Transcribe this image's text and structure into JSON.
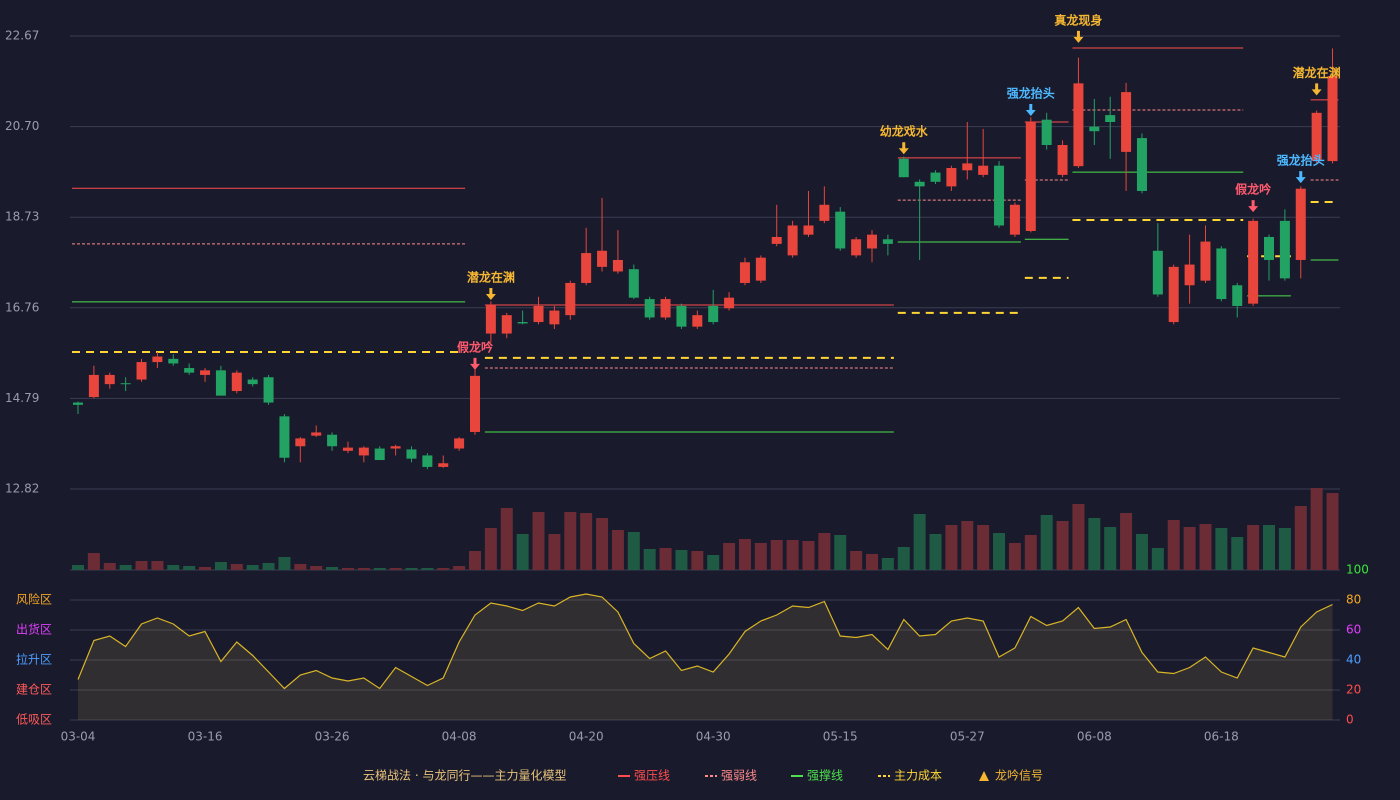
{
  "chart_data": {
    "type": "candlestick",
    "title": "云梯战法 · 与龙同行——主力量化模型",
    "categories": [
      "03-04",
      null,
      null,
      null,
      null,
      null,
      null,
      null,
      "03-16",
      null,
      null,
      null,
      null,
      null,
      null,
      null,
      "03-26",
      null,
      null,
      null,
      null,
      null,
      null,
      null,
      "04-08",
      null,
      null,
      null,
      null,
      null,
      null,
      null,
      "04-20",
      null,
      null,
      null,
      null,
      null,
      null,
      null,
      "04-30",
      null,
      null,
      null,
      null,
      null,
      null,
      null,
      "05-15",
      null,
      null,
      null,
      null,
      null,
      null,
      null,
      "05-27",
      null,
      null,
      null,
      null,
      null,
      null,
      null,
      "06-08",
      null,
      null,
      null,
      null,
      null,
      null,
      null,
      "06-18",
      null,
      null,
      null,
      null,
      null,
      null,
      null
    ],
    "ohlc": {
      "open": [
        14.7,
        14.82,
        15.1,
        15.12,
        15.2,
        15.58,
        15.65,
        15.45,
        15.3,
        15.4,
        14.95,
        15.2,
        15.25,
        14.4,
        13.75,
        13.98,
        14.0,
        13.65,
        13.55,
        13.7,
        13.7,
        13.68,
        13.55,
        13.3,
        13.7,
        14.06,
        16.2,
        16.2,
        16.45,
        16.45,
        16.4,
        16.6,
        17.3,
        17.65,
        17.55,
        17.6,
        16.95,
        16.55,
        16.8,
        16.35,
        16.8,
        16.75,
        17.3,
        17.35,
        18.15,
        17.9,
        18.35,
        18.65,
        18.85,
        17.9,
        18.05,
        18.25,
        20.0,
        19.5,
        19.7,
        19.4,
        19.75,
        19.65,
        19.85,
        18.35,
        18.43,
        20.85,
        19.65,
        19.84,
        20.7,
        20.95,
        20.15,
        20.45,
        18.0,
        16.45,
        17.25,
        17.35,
        18.05,
        17.25,
        16.85,
        18.3,
        18.65,
        17.8,
        19.95,
        19.95
      ],
      "close": [
        14.65,
        15.3,
        15.3,
        15.1,
        15.58,
        15.7,
        15.55,
        15.35,
        15.4,
        14.85,
        15.35,
        15.1,
        14.7,
        13.5,
        13.92,
        14.05,
        13.75,
        13.72,
        13.72,
        13.45,
        13.75,
        13.48,
        13.3,
        13.38,
        13.92,
        15.28,
        16.82,
        16.6,
        16.42,
        16.8,
        16.7,
        17.3,
        17.95,
        18.0,
        17.8,
        16.98,
        16.55,
        16.95,
        16.35,
        16.6,
        16.45,
        16.98,
        17.75,
        17.85,
        18.3,
        18.55,
        18.55,
        19.0,
        18.05,
        18.25,
        18.35,
        18.15,
        19.6,
        19.4,
        19.5,
        19.8,
        19.9,
        19.85,
        18.55,
        19.0,
        20.8,
        20.3,
        20.3,
        21.64,
        20.6,
        20.8,
        21.45,
        19.3,
        17.05,
        17.65,
        17.7,
        18.2,
        16.95,
        16.8,
        18.65,
        17.8,
        17.4,
        19.35,
        21.0,
        21.8
      ],
      "high": [
        14.72,
        15.5,
        15.35,
        15.25,
        15.65,
        15.8,
        15.75,
        15.55,
        15.45,
        15.5,
        15.4,
        15.25,
        15.3,
        14.45,
        13.95,
        14.2,
        14.05,
        13.85,
        13.75,
        13.75,
        13.78,
        13.75,
        13.6,
        13.55,
        13.95,
        15.45,
        16.9,
        16.65,
        16.7,
        17.0,
        16.8,
        17.35,
        18.5,
        19.15,
        18.45,
        17.7,
        17.0,
        17.0,
        16.85,
        16.7,
        17.15,
        17.1,
        17.85,
        17.9,
        19.0,
        18.65,
        19.3,
        19.4,
        18.95,
        18.3,
        18.45,
        18.35,
        20.05,
        19.55,
        19.75,
        19.85,
        20.8,
        20.65,
        19.95,
        19.05,
        20.9,
        21.0,
        20.4,
        22.2,
        21.3,
        21.35,
        21.65,
        20.55,
        18.6,
        17.7,
        18.35,
        18.55,
        18.1,
        17.3,
        18.7,
        18.35,
        18.9,
        19.4,
        21.05,
        22.4
      ],
      "low": [
        14.45,
        14.79,
        15.0,
        14.95,
        15.15,
        15.45,
        15.5,
        15.3,
        15.15,
        14.85,
        14.9,
        15.05,
        14.65,
        13.4,
        13.4,
        13.95,
        13.65,
        13.6,
        13.4,
        13.45,
        13.55,
        13.4,
        13.25,
        13.28,
        13.65,
        14.0,
        16.0,
        16.1,
        16.4,
        16.4,
        16.3,
        16.5,
        17.25,
        17.55,
        17.5,
        16.95,
        16.5,
        16.5,
        16.3,
        16.3,
        16.4,
        16.7,
        17.25,
        17.3,
        18.1,
        17.85,
        18.3,
        18.6,
        18.0,
        17.85,
        17.75,
        17.9,
        19.6,
        17.8,
        19.45,
        19.3,
        19.55,
        19.6,
        18.5,
        18.3,
        18.4,
        20.2,
        19.6,
        19.8,
        20.3,
        20.0,
        19.3,
        19.25,
        17.0,
        16.4,
        16.85,
        17.3,
        16.9,
        16.55,
        16.8,
        17.35,
        17.35,
        17.4,
        19.9,
        19.9
      ]
    },
    "up_color": "#e8453c",
    "down_color": "#22a364",
    "volume": [
      5,
      17,
      7,
      5,
      9,
      9,
      5,
      4,
      3,
      8,
      6,
      5,
      7,
      13,
      6,
      4,
      3,
      2,
      2,
      2,
      2,
      2,
      2,
      2,
      4,
      19,
      42,
      62,
      36,
      58,
      36,
      58,
      57,
      52,
      40,
      38,
      21,
      22,
      20,
      19,
      15,
      27,
      31,
      27,
      30,
      30,
      29,
      37,
      35,
      19,
      16,
      12,
      23,
      56,
      36,
      45,
      49,
      45,
      37,
      27,
      35,
      55,
      49,
      66,
      52,
      43,
      57,
      36,
      22,
      50,
      43,
      46,
      42,
      33,
      45,
      45,
      42,
      64,
      82,
      77
    ],
    "volume_up_color": "#6b2c36",
    "volume_down_color": "#1f5a44",
    "ylim": [
      12.82,
      22.67
    ],
    "yticks": [
      12.82,
      14.79,
      16.76,
      18.73,
      20.7,
      22.67
    ],
    "ytick_labels": [
      "12.82",
      "14.79",
      "16.76",
      "18.73",
      "20.70",
      "22.67"
    ],
    "oscillator": [
      27,
      53,
      56,
      49,
      64,
      68,
      64,
      56,
      59,
      39,
      52,
      43,
      32,
      21,
      30,
      33,
      28,
      26,
      28,
      21,
      35,
      29,
      23,
      28,
      52,
      70,
      78,
      76,
      73,
      78,
      76,
      82,
      84,
      82,
      72,
      51,
      41,
      46,
      33,
      36,
      32,
      44,
      59,
      66,
      70,
      76,
      75,
      79,
      56,
      55,
      57,
      47,
      67,
      56,
      57,
      66,
      68,
      66,
      42,
      48,
      69,
      63,
      66,
      75,
      61,
      62,
      67,
      45,
      32,
      31,
      35,
      42,
      32,
      28,
      48,
      45,
      42,
      62,
      72,
      77
    ],
    "oscillator_color": "#d9b526",
    "y2lim": [
      0,
      100
    ],
    "y2ticks": [
      0,
      20,
      40,
      60,
      80,
      100
    ],
    "y2tick_colors": [
      "#ff4d4d",
      "#ff4d4d",
      "#4d9fff",
      "#e040fb",
      "#f5a623",
      "#39e639"
    ],
    "zones": [
      {
        "value": 80,
        "label": "风险区",
        "color": "#f5a623"
      },
      {
        "value": 60,
        "label": "出货区",
        "color": "#e040fb"
      },
      {
        "value": 40,
        "label": "拉升区",
        "color": "#4d9fff"
      },
      {
        "value": 20,
        "label": "建仓区",
        "color": "#ff5a5a"
      },
      {
        "value": 0,
        "label": "低吸区",
        "color": "#ff5a5a"
      }
    ],
    "level_lines": [
      {
        "name": "强压线",
        "color": "#ff4d4d",
        "dashed": false
      },
      {
        "name": "强弱线",
        "color": "#ff8a8a",
        "dashed": true
      },
      {
        "name": "强撑线",
        "color": "#4de04d",
        "dashed": false
      },
      {
        "name": "主力成本",
        "color": "#ffd633",
        "dashed": true
      }
    ],
    "levels": [
      {
        "line": 0,
        "from": 0,
        "to": 24,
        "value": 19.36
      },
      {
        "line": 1,
        "from": 0,
        "to": 24,
        "value": 18.15
      },
      {
        "line": 2,
        "from": 0,
        "to": 24,
        "value": 16.89
      },
      {
        "line": 3,
        "from": 0,
        "to": 24,
        "value": 15.8
      },
      {
        "line": 0,
        "from": 26,
        "to": 51,
        "value": 16.82
      },
      {
        "line": 1,
        "from": 26,
        "to": 51,
        "value": 15.45
      },
      {
        "line": 2,
        "from": 26,
        "to": 51,
        "value": 14.06
      },
      {
        "line": 3,
        "from": 26,
        "to": 51,
        "value": 15.67
      },
      {
        "line": 0,
        "from": 52,
        "to": 59,
        "value": 20.02
      },
      {
        "line": 1,
        "from": 52,
        "to": 59,
        "value": 19.1
      },
      {
        "line": 2,
        "from": 52,
        "to": 59,
        "value": 18.19
      },
      {
        "line": 3,
        "from": 52,
        "to": 59,
        "value": 16.65
      },
      {
        "line": 0,
        "from": 60,
        "to": 62,
        "value": 20.8
      },
      {
        "line": 1,
        "from": 60,
        "to": 62,
        "value": 19.54
      },
      {
        "line": 2,
        "from": 60,
        "to": 62,
        "value": 18.25
      },
      {
        "line": 3,
        "from": 60,
        "to": 62,
        "value": 17.41
      },
      {
        "line": 0,
        "from": 63,
        "to": 73,
        "value": 22.41
      },
      {
        "line": 1,
        "from": 63,
        "to": 73,
        "value": 21.06
      },
      {
        "line": 2,
        "from": 63,
        "to": 73,
        "value": 19.71
      },
      {
        "line": 3,
        "from": 63,
        "to": 73,
        "value": 18.67
      },
      {
        "line": 2,
        "from": 74,
        "to": 76,
        "value": 17.02
      },
      {
        "line": 3,
        "from": 74,
        "to": 76,
        "value": 17.88
      },
      {
        "line": 0,
        "from": 78,
        "to": 79,
        "value": 21.28
      },
      {
        "line": 1,
        "from": 78,
        "to": 79,
        "value": 19.54
      },
      {
        "line": 2,
        "from": 78,
        "to": 79,
        "value": 17.8
      },
      {
        "line": 3,
        "from": 78,
        "to": 79,
        "value": 19.06
      }
    ],
    "signals": [
      {
        "index": 25,
        "value": 15.41,
        "label": "假龙吟",
        "color": "#ff5a6e"
      },
      {
        "index": 26,
        "value": 16.93,
        "label": "潜龙在渊",
        "color": "#f5b731"
      },
      {
        "index": 52,
        "value": 20.1,
        "label": "幼龙戏水",
        "color": "#f5b731"
      },
      {
        "index": 60,
        "value": 20.93,
        "label": "强龙抬头",
        "color": "#4db8ff"
      },
      {
        "index": 63,
        "value": 22.52,
        "label": "真龙现身",
        "color": "#f5b731"
      },
      {
        "index": 74,
        "value": 18.84,
        "label": "假龙吟",
        "color": "#ff5a6e"
      },
      {
        "index": 77,
        "value": 19.47,
        "label": "强龙抬头",
        "color": "#4db8ff"
      },
      {
        "index": 78,
        "value": 21.38,
        "label": "潜龙在渊",
        "color": "#f5b731"
      }
    ],
    "signal_legend": "龙吟信号",
    "signal_legend_color": "#f5b731"
  }
}
